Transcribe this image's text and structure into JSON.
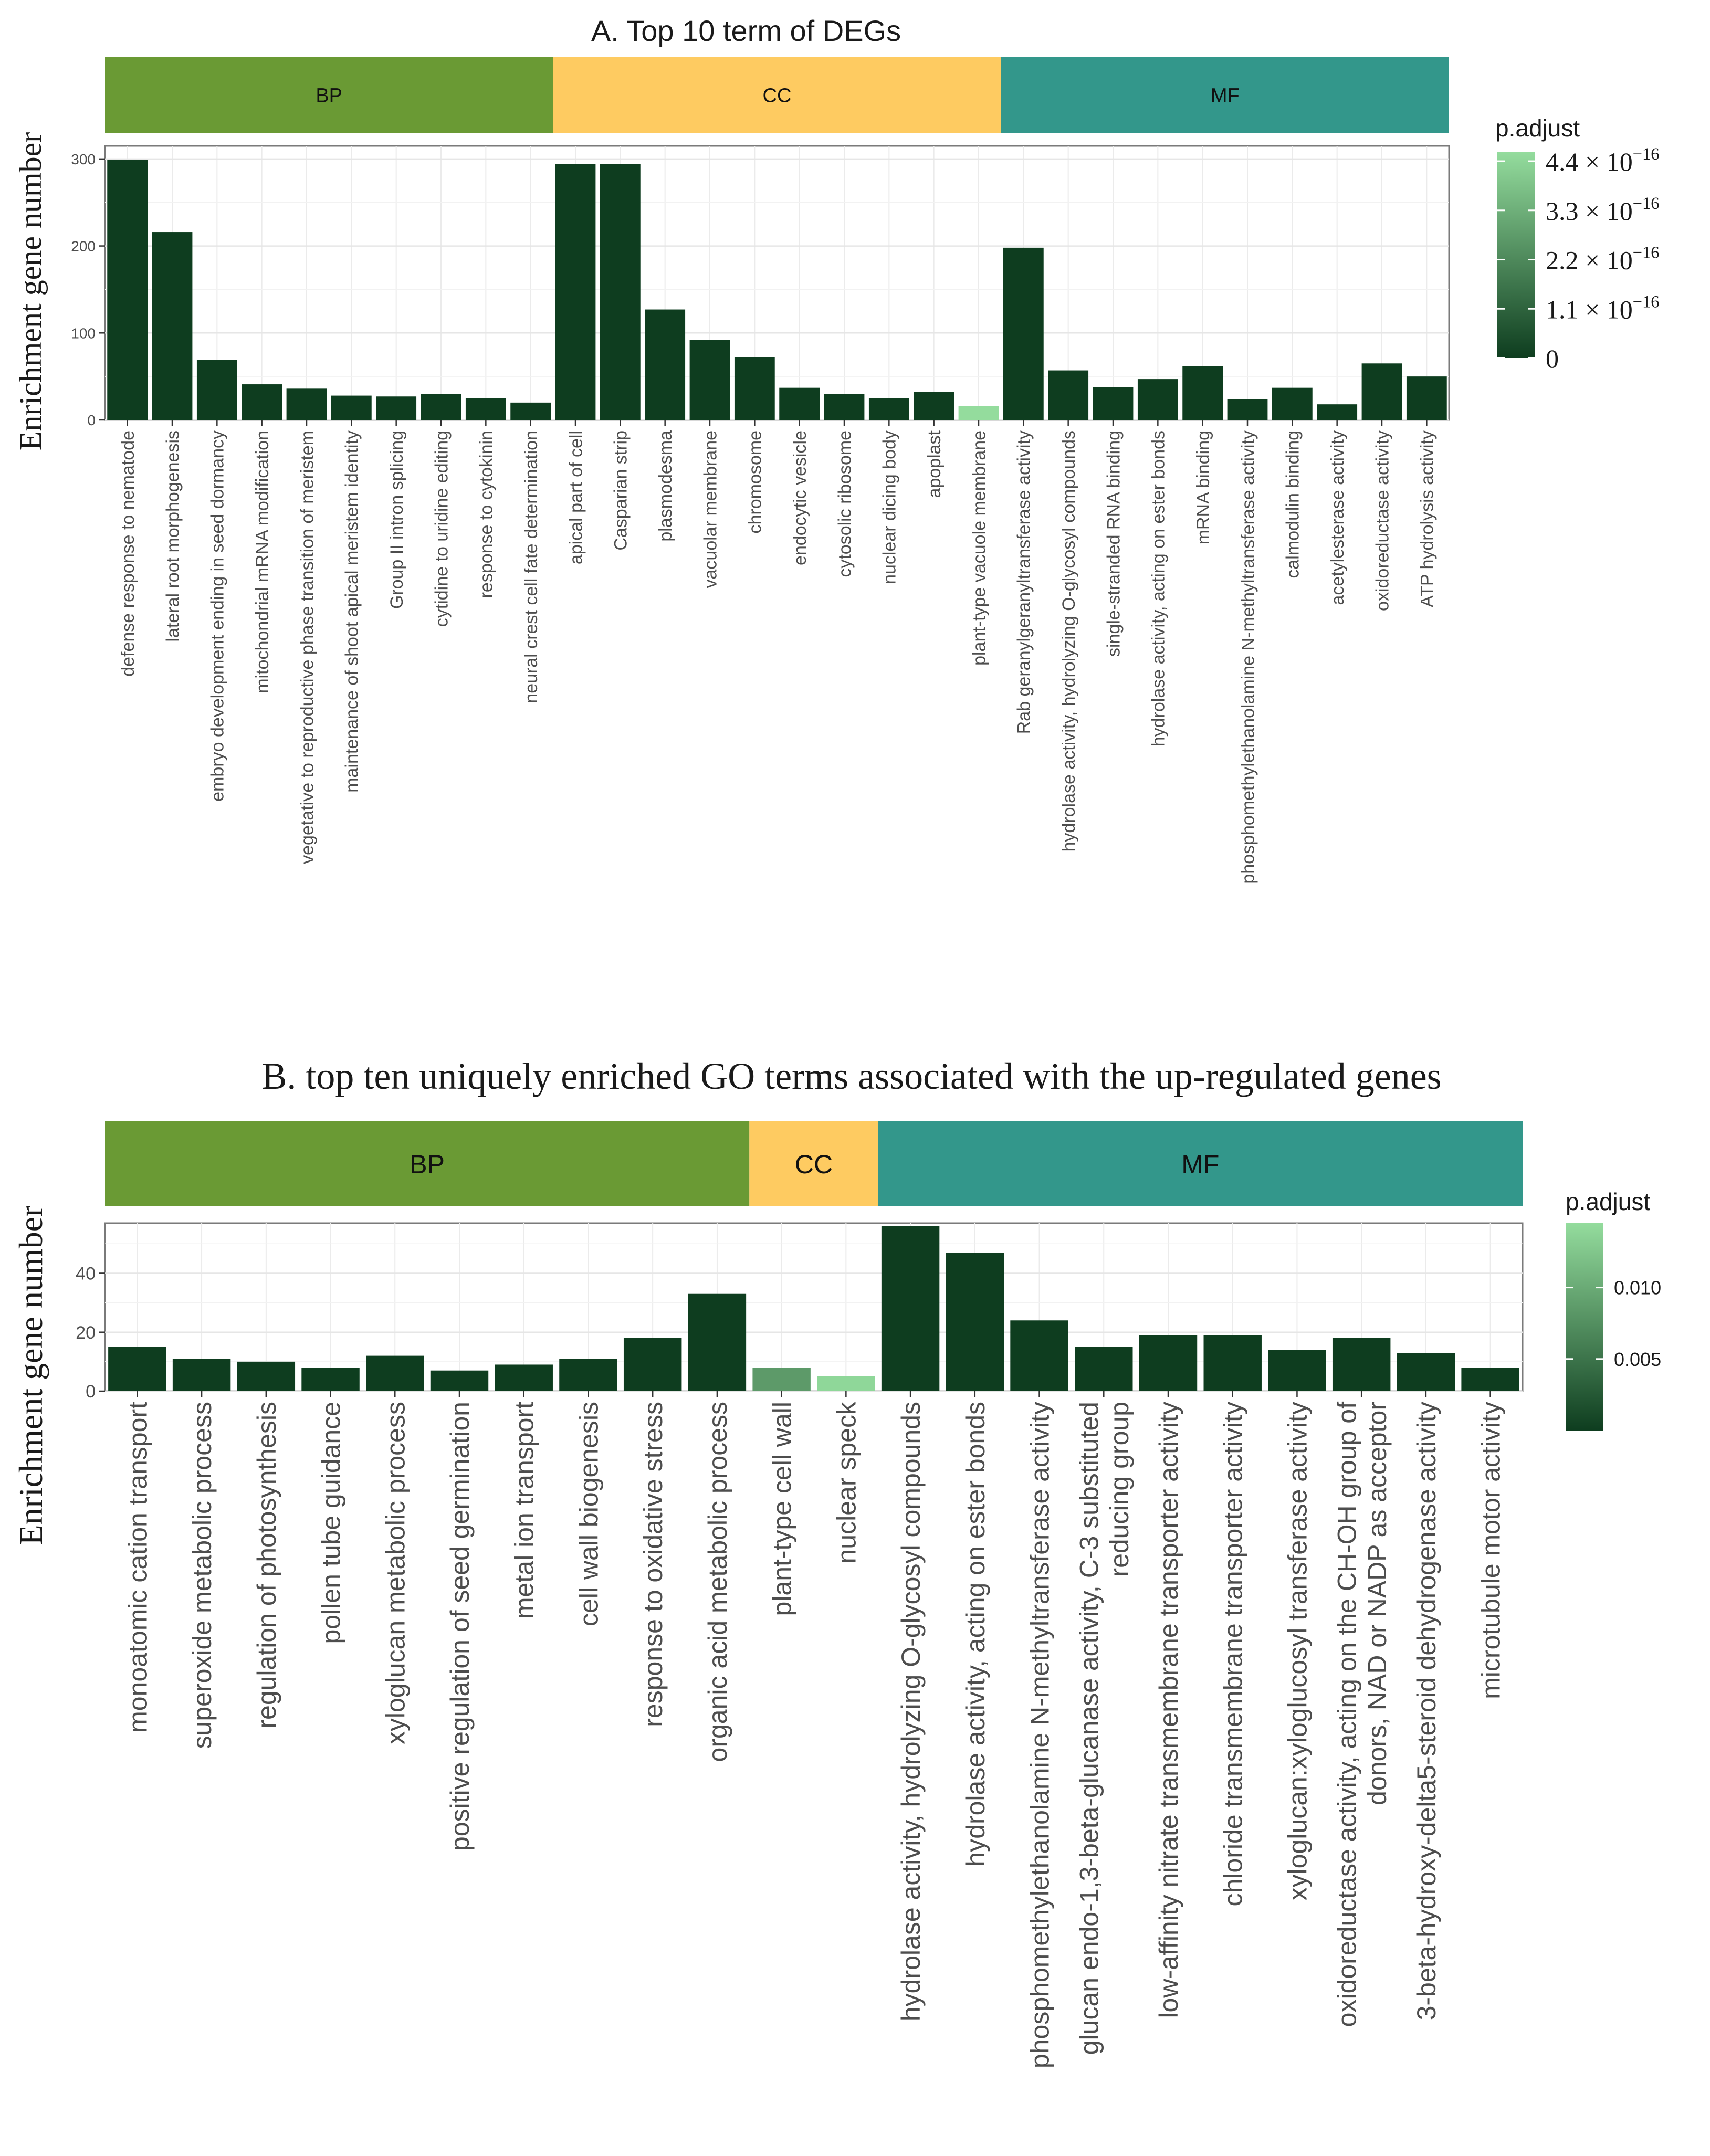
{
  "chart_data": [
    {
      "type": "bar",
      "title": "A. Top 10 term of DEGs",
      "ylabel": "Enrichment gene number",
      "xlabel": "",
      "ylim": [
        0,
        315
      ],
      "yticks": [
        0,
        100,
        200,
        300
      ],
      "grid": true,
      "groups": [
        {
          "name": "BP",
          "color": "#6a9a34",
          "count": 10
        },
        {
          "name": "CC",
          "color": "#fecb61",
          "count": 10
        },
        {
          "name": "MF",
          "color": "#33978b",
          "count": 10
        }
      ],
      "categories": [
        "defense response to nematode",
        "lateral root morphogenesis",
        "embryo development ending in seed dormancy",
        "mitochondrial mRNA modification",
        "vegetative to reproductive phase transition of meristem",
        "maintenance of shoot apical meristem identity",
        "Group II intron splicing",
        "cytidine to uridine editing",
        "response to cytokinin",
        "neural crest cell fate determination",
        "apical part of cell",
        "Casparian strip",
        "plasmodesma",
        "vacuolar membrane",
        "chromosome",
        "endocytic vesicle",
        "cytosolic ribosome",
        "nuclear dicing body",
        "apoplast",
        "plant-type vacuole membrane",
        "Rab geranylgeranyltransferase activity",
        "hydrolase activity, hydrolyzing O-glycosyl compounds",
        "single-stranded RNA binding",
        "hydrolase activity, acting on ester bonds",
        "mRNA binding",
        "phosphomethylethanolamine N-methyltransferase activity",
        "calmodulin binding",
        "acetylesterase activity",
        "oxidoreductase activity",
        "ATP hydrolysis activity"
      ],
      "values": [
        299,
        216,
        69,
        41,
        36,
        28,
        27,
        30,
        25,
        20,
        294,
        294,
        127,
        92,
        72,
        37,
        30,
        25,
        32,
        16,
        198,
        57,
        38,
        47,
        62,
        24,
        37,
        18,
        65,
        50
      ],
      "p_adjust": [
        0,
        0,
        0,
        0,
        0,
        0,
        0,
        0,
        0,
        0,
        0,
        0,
        0,
        0,
        0,
        0,
        0,
        0,
        0,
        4.4e-16,
        0,
        0,
        0,
        0,
        0,
        0,
        0,
        0,
        0,
        0
      ],
      "legend": {
        "title": "p.adjust",
        "position": "right",
        "color_low": "#0e3d1f",
        "color_high": "#94dc9d",
        "ticks": [
          {
            "mantissa": "4.4 × 10",
            "exp": "−16",
            "value": 4.4e-16
          },
          {
            "mantissa": "3.3 × 10",
            "exp": "−16",
            "value": 3.3e-16
          },
          {
            "mantissa": "2.2 × 10",
            "exp": "−16",
            "value": 2.2e-16
          },
          {
            "mantissa": "1.1 × 10",
            "exp": "−16",
            "value": 1.1e-16
          },
          {
            "mantissa": "0",
            "exp": "",
            "value": 0
          }
        ]
      }
    },
    {
      "type": "bar",
      "title": "B. top ten uniquely enriched GO terms associated with the up-regulated genes",
      "ylabel": "Enrichment  gene  number",
      "xlabel": "",
      "ylim": [
        0,
        57
      ],
      "yticks": [
        0,
        20,
        40
      ],
      "grid": true,
      "groups": [
        {
          "name": "BP",
          "color": "#6a9a34",
          "count": 10
        },
        {
          "name": "CC",
          "color": "#fecb61",
          "count": 2
        },
        {
          "name": "MF",
          "color": "#33978b",
          "count": 10
        }
      ],
      "categories": [
        [
          "monoatomic cation transport"
        ],
        [
          "superoxide metabolic process"
        ],
        [
          "regulation of photosynthesis"
        ],
        [
          "pollen tube guidance"
        ],
        [
          "xyloglucan metabolic process"
        ],
        [
          "positive regulation of seed germination"
        ],
        [
          "metal ion transport"
        ],
        [
          "cell wall biogenesis"
        ],
        [
          "response to oxidative stress"
        ],
        [
          "organic acid metabolic process"
        ],
        [
          "plant-type cell wall"
        ],
        [
          "nuclear speck"
        ],
        [
          "hydrolase activity, hydrolyzing O-glycosyl compounds"
        ],
        [
          "hydrolase activity, acting on ester bonds"
        ],
        [
          "phosphomethylethanolamine N-methyltransferase activity"
        ],
        [
          "glucan endo-1,3-beta-glucanase activity, C-3 substituted",
          "reducing group"
        ],
        [
          "low-affinity nitrate transmembrane transporter activity"
        ],
        [
          "chloride transmembrane transporter activity"
        ],
        [
          "xyloglucan:xyloglucosyl transferase activity"
        ],
        [
          "oxidoreductase activity, acting on the CH-OH group of",
          "donors, NAD or NADP as acceptor"
        ],
        [
          "3-beta-hydroxy-delta5-steroid dehydrogenase activity"
        ],
        [
          "microtubule motor activity"
        ]
      ],
      "values": [
        15,
        11,
        10,
        8,
        12,
        7,
        9,
        11,
        18,
        33,
        8,
        5,
        56,
        47,
        24,
        15,
        19,
        19,
        14,
        18,
        13,
        8
      ],
      "p_adjust": [
        0,
        0,
        0,
        0,
        0,
        0,
        0,
        0,
        0,
        0,
        0.0085,
        0.014,
        0,
        0,
        0,
        0,
        0,
        0,
        0,
        0,
        0,
        0
      ],
      "legend": {
        "title": "p.adjust",
        "position": "right",
        "color_low": "#0e3d1f",
        "color_high": "#94dc9d",
        "min": 0,
        "max": 0.0145,
        "ticks": [
          {
            "label": "0.010",
            "value": 0.01
          },
          {
            "label": "0.005",
            "value": 0.005
          }
        ]
      }
    }
  ]
}
